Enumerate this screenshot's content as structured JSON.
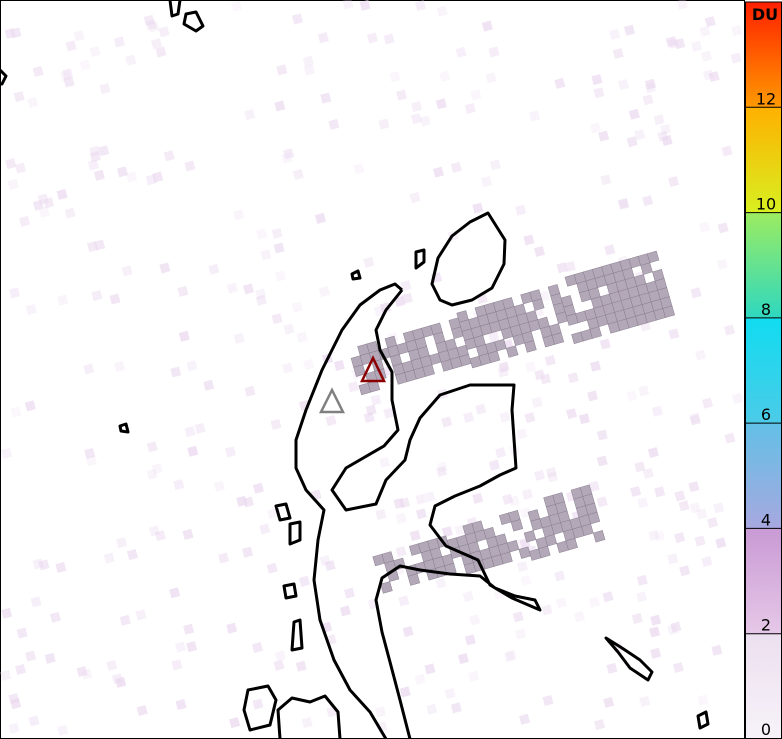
{
  "colorbar": {
    "unit": "DU",
    "ticks": [
      "0",
      "2",
      "4",
      "6",
      "8",
      "10",
      "12"
    ],
    "segments": [
      {
        "from": 0,
        "to": 2,
        "colors": [
          "#f7f2f9",
          "#ece0ef"
        ]
      },
      {
        "from": 2,
        "to": 4,
        "colors": [
          "#e6c8e8",
          "#c99ad4"
        ]
      },
      {
        "from": 4,
        "to": 6,
        "colors": [
          "#a8a8e0",
          "#62c0e6"
        ]
      },
      {
        "from": 6,
        "to": 8,
        "colors": [
          "#4ccbe8",
          "#10dcf0"
        ]
      },
      {
        "from": 8,
        "to": 10,
        "colors": [
          "#2ed8c0",
          "#9cec60"
        ]
      },
      {
        "from": 10,
        "to": 12,
        "colors": [
          "#d8f020",
          "#ffb000"
        ]
      },
      {
        "from": 12,
        "to": 14,
        "colors": [
          "#ff9a00",
          "#ff2000"
        ]
      }
    ]
  },
  "map": {
    "plume_color": "#b3a8b8",
    "markers": [
      {
        "name": "volcano-active",
        "color": "#8b0000"
      },
      {
        "name": "volcano-other",
        "color": "#808080"
      }
    ]
  }
}
